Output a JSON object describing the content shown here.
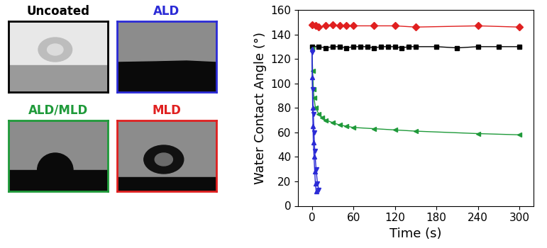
{
  "panels": [
    {
      "label": "Uncoated",
      "color": "#000000"
    },
    {
      "label": "ALD",
      "color": "#2b2bd6"
    },
    {
      "label": "ALD/MLD",
      "color": "#1f9a3a"
    },
    {
      "label": "MLD",
      "color": "#e02020"
    }
  ],
  "chart_data": {
    "type": "line",
    "x_label": "Time (s)",
    "y_label": "Water Contact Angle (°)",
    "xlim": [
      -20,
      320
    ],
    "xticks": [
      0,
      60,
      120,
      180,
      240,
      300
    ],
    "ylim": [
      0,
      160
    ],
    "yticks": [
      0,
      20,
      40,
      60,
      80,
      100,
      120,
      140,
      160
    ],
    "series": [
      {
        "name": "MLD",
        "color": "#e02020",
        "marker": "diamond",
        "x": [
          0,
          5,
          10,
          20,
          30,
          40,
          50,
          60,
          90,
          120,
          150,
          240,
          300
        ],
        "values": [
          148,
          147,
          146,
          147,
          148,
          147,
          147,
          147,
          147,
          147,
          146,
          147,
          146
        ]
      },
      {
        "name": "Uncoated",
        "color": "#000000",
        "marker": "square",
        "x": [
          0,
          10,
          20,
          30,
          40,
          50,
          60,
          70,
          80,
          90,
          100,
          110,
          120,
          130,
          140,
          150,
          180,
          210,
          240,
          270,
          300
        ],
        "values": [
          130,
          130,
          129,
          130,
          130,
          129,
          130,
          130,
          130,
          129,
          130,
          130,
          130,
          129,
          130,
          130,
          130,
          129,
          130,
          130,
          130
        ]
      },
      {
        "name": "ALD/MLD",
        "color": "#1f9a3a",
        "marker": "triangle_left",
        "x": [
          0,
          1,
          2,
          3,
          5,
          10,
          15,
          20,
          30,
          40,
          50,
          60,
          90,
          120,
          150,
          240,
          300
        ],
        "values": [
          128,
          110,
          95,
          88,
          80,
          75,
          72,
          70,
          68,
          66,
          65,
          64,
          63,
          62,
          61,
          59,
          58
        ]
      },
      {
        "name": "ALD",
        "color": "#2b2bd6",
        "marker": "triangle_up",
        "x": [
          0,
          0.5,
          1,
          1.5,
          2,
          3,
          4,
          5,
          6
        ],
        "values": [
          128,
          105,
          80,
          65,
          52,
          40,
          28,
          18,
          12
        ]
      },
      {
        "name": "ALD",
        "color": "#2b2bd6",
        "marker": "triangle_down",
        "x": [
          0,
          1,
          2,
          3,
          4,
          6,
          8,
          10
        ],
        "values": [
          125,
          95,
          75,
          60,
          45,
          30,
          18,
          13
        ]
      }
    ]
  }
}
